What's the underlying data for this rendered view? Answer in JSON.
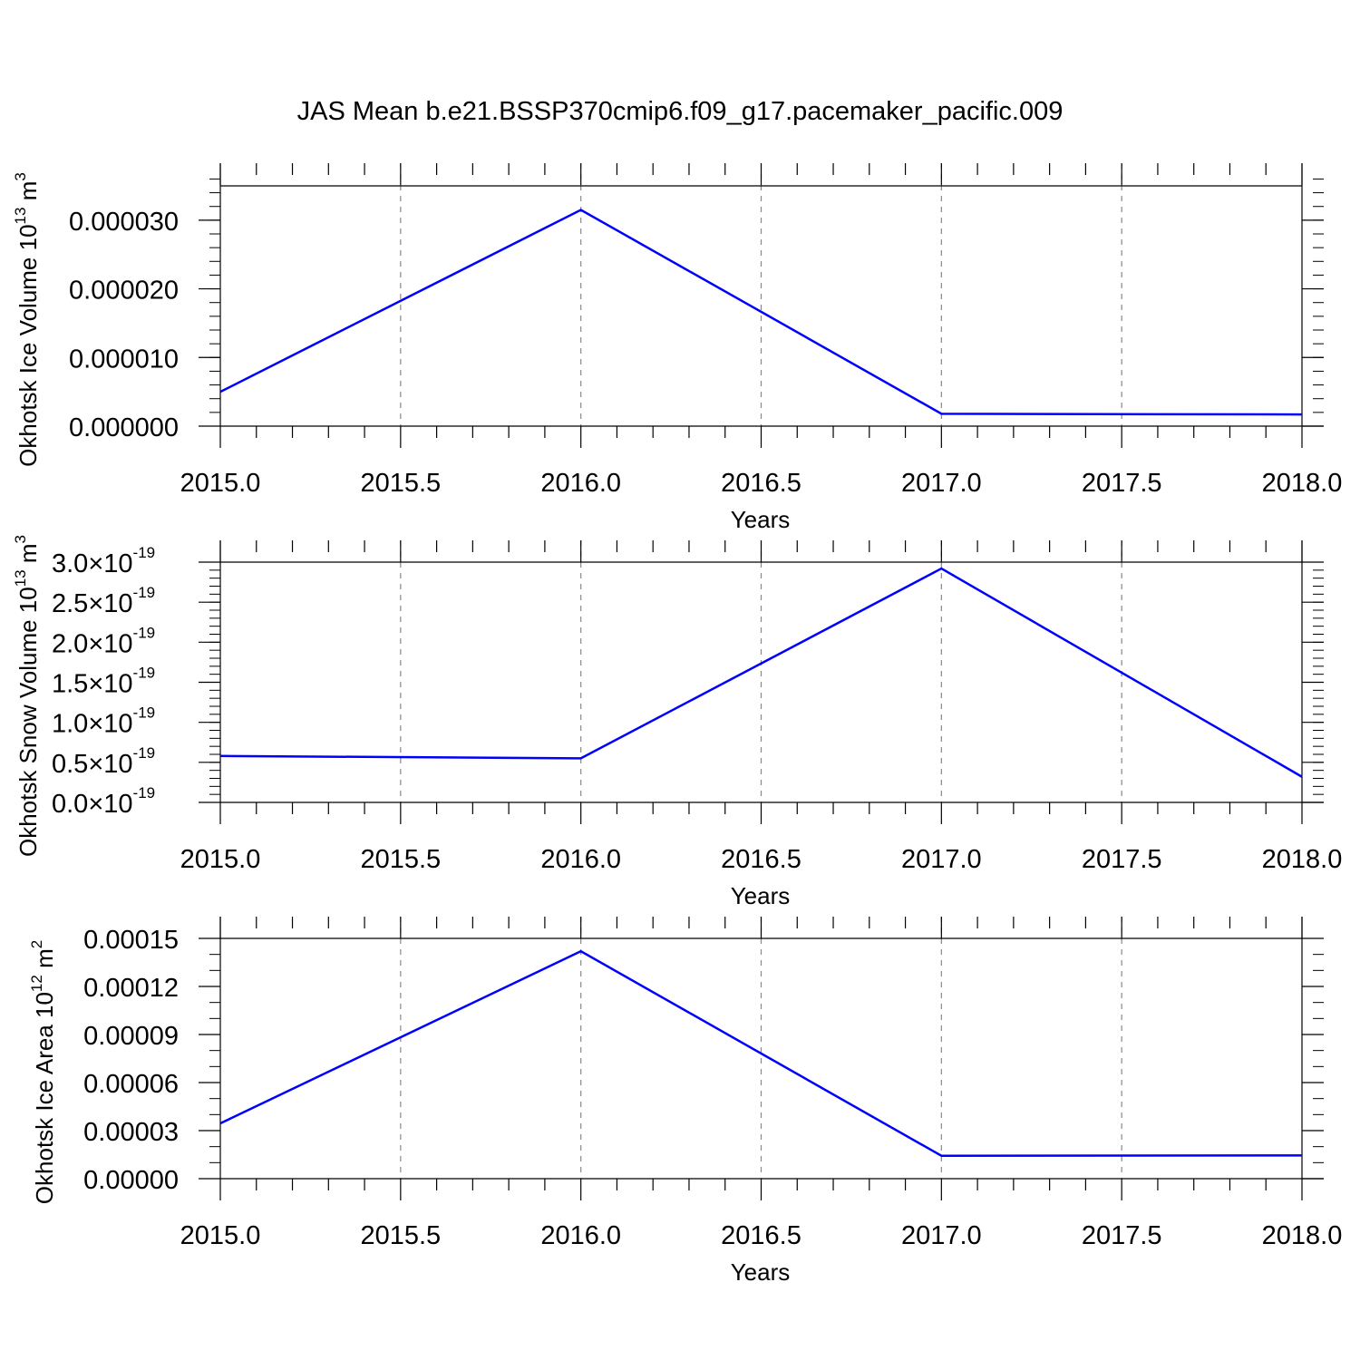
{
  "title": "JAS Mean b.e21.BSSP370cmip6.f09_g17.pacemaker_pacific.009",
  "line_color": "#0000ff",
  "grid_color": "#888888",
  "chart_data": [
    {
      "type": "line",
      "xlabel": "Years",
      "ylabel": {
        "main": "Okhotsk Ice Volume 10",
        "exp": "13",
        "unit": "m",
        "unit_exp": "3"
      },
      "x": [
        2015.0,
        2016.0,
        2017.0,
        2018.0
      ],
      "series": [
        {
          "values": [
            5e-06,
            3.15e-05,
            1.8e-06,
            1.7e-06
          ]
        }
      ],
      "xlim": [
        2015.0,
        2018.0
      ],
      "ylim": [
        0,
        3.5e-05
      ],
      "xticks": [
        "2015.0",
        "2015.5",
        "2016.0",
        "2016.5",
        "2017.0",
        "2017.5",
        "2018.0"
      ],
      "yticks": [
        {
          "value": 0.0,
          "label": "0.000000"
        },
        {
          "value": 1e-05,
          "label": "0.000010"
        },
        {
          "value": 2e-05,
          "label": "0.000020"
        },
        {
          "value": 3e-05,
          "label": "0.000030"
        }
      ],
      "y_minor_step": 2e-06,
      "grid": "vertical-dashed"
    },
    {
      "type": "line",
      "xlabel": "Years",
      "ylabel": {
        "main": "Okhotsk Snow Volume 10",
        "exp": "13",
        "unit": "m",
        "unit_exp": "3"
      },
      "x": [
        2015.0,
        2016.0,
        2017.0,
        2018.0
      ],
      "series": [
        {
          "values": [
            5.8e-20,
            5.5e-20,
            2.92e-19,
            3.2e-20
          ]
        }
      ],
      "xlim": [
        2015.0,
        2018.0
      ],
      "ylim": [
        0,
        3e-19
      ],
      "xticks": [
        "2015.0",
        "2015.5",
        "2016.0",
        "2016.5",
        "2017.0",
        "2017.5",
        "2018.0"
      ],
      "yticks": [
        {
          "value": 0.0,
          "label": "0.0",
          "exp": "-19"
        },
        {
          "value": 5e-20,
          "label": "0.5",
          "exp": "-19"
        },
        {
          "value": 1e-19,
          "label": "1.0",
          "exp": "-19"
        },
        {
          "value": 1.5e-19,
          "label": "1.5",
          "exp": "-19"
        },
        {
          "value": 2e-19,
          "label": "2.0",
          "exp": "-19"
        },
        {
          "value": 2.5e-19,
          "label": "2.5",
          "exp": "-19"
        },
        {
          "value": 3e-19,
          "label": "3.0",
          "exp": "-19"
        }
      ],
      "y_sci_multiplier": "×10",
      "y_minor_step": 1e-20,
      "grid": "vertical-dashed"
    },
    {
      "type": "line",
      "xlabel": "Years",
      "ylabel": {
        "main": "Okhotsk Ice Area 10",
        "exp": "12",
        "unit": "m",
        "unit_exp": "2"
      },
      "x": [
        2015.0,
        2016.0,
        2017.0,
        2018.0
      ],
      "series": [
        {
          "values": [
            3.45e-05,
            0.000142,
            1.43e-05,
            1.45e-05
          ]
        }
      ],
      "xlim": [
        2015.0,
        2018.0
      ],
      "ylim": [
        0,
        0.00015
      ],
      "xticks": [
        "2015.0",
        "2015.5",
        "2016.0",
        "2016.5",
        "2017.0",
        "2017.5",
        "2018.0"
      ],
      "yticks": [
        {
          "value": 0.0,
          "label": "0.00000"
        },
        {
          "value": 3e-05,
          "label": "0.00003"
        },
        {
          "value": 6e-05,
          "label": "0.00006"
        },
        {
          "value": 9e-05,
          "label": "0.00009"
        },
        {
          "value": 0.00012,
          "label": "0.00012"
        },
        {
          "value": 0.00015,
          "label": "0.00015"
        }
      ],
      "y_minor_step": 1e-05,
      "grid": "vertical-dashed"
    }
  ]
}
